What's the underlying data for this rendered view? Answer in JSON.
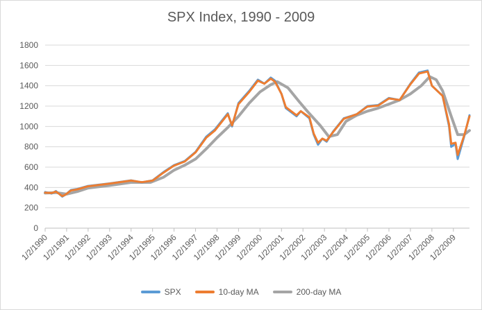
{
  "chart_data": {
    "type": "line",
    "title": "SPX Index, 1990 - 2009",
    "xlabel": "",
    "ylabel": "",
    "ylim": [
      0,
      1800
    ],
    "yticks": [
      "0",
      "200",
      "400",
      "600",
      "800",
      "1000",
      "1200",
      "1400",
      "1600",
      "1800"
    ],
    "xticks": [
      "1/2/1990",
      "1/2/1991",
      "1/2/1992",
      "1/2/1993",
      "1/2/1994",
      "1/2/1995",
      "1/2/1996",
      "1/2/1997",
      "1/2/1998",
      "1/2/1999",
      "1/2/2000",
      "1/2/2001",
      "1/2/2002",
      "1/2/2003",
      "1/2/2004",
      "1/2/2005",
      "1/2/2006",
      "1/2/2007",
      "1/2/2008",
      "1/2/2009"
    ],
    "xlim": [
      1990.0,
      2009.75
    ],
    "grid": true,
    "legend_position": "bottom",
    "series": [
      {
        "name": "SPX",
        "color": "#5b9bd5",
        "x": [
          1990.0,
          1990.3,
          1990.5,
          1990.8,
          1990.95,
          1991.2,
          1991.5,
          1992.0,
          1993.0,
          1994.0,
          1994.5,
          1995.0,
          1995.5,
          1996.0,
          1996.5,
          1997.0,
          1997.5,
          1997.9,
          1998.5,
          1998.7,
          1999.0,
          1999.5,
          1999.9,
          2000.2,
          2000.5,
          2000.7,
          2001.0,
          2001.2,
          2001.7,
          2001.9,
          2002.3,
          2002.5,
          2002.7,
          2002.9,
          2003.1,
          2003.4,
          2003.9,
          2004.5,
          2005.0,
          2005.5,
          2006.0,
          2006.5,
          2007.0,
          2007.4,
          2007.8,
          2008.0,
          2008.5,
          2008.8,
          2008.9,
          2009.1,
          2009.2,
          2009.5,
          2009.75
        ],
        "y": [
          355,
          340,
          365,
          310,
          330,
          375,
          385,
          415,
          440,
          470,
          450,
          470,
          550,
          620,
          660,
          750,
          900,
          970,
          1130,
          1000,
          1230,
          1350,
          1460,
          1420,
          1480,
          1450,
          1320,
          1180,
          1100,
          1150,
          1080,
          920,
          820,
          880,
          850,
          950,
          1080,
          1120,
          1200,
          1210,
          1280,
          1260,
          1420,
          1530,
          1550,
          1400,
          1300,
          1000,
          800,
          830,
          680,
          900,
          1110
        ]
      },
      {
        "name": "10-day MA",
        "color": "#ed7d31",
        "x": [
          1990.0,
          1990.3,
          1990.5,
          1990.8,
          1990.95,
          1991.2,
          1991.5,
          1992.0,
          1993.0,
          1994.0,
          1994.5,
          1995.0,
          1995.5,
          1996.0,
          1996.5,
          1997.0,
          1997.5,
          1997.9,
          1998.5,
          1998.7,
          1999.0,
          1999.5,
          1999.9,
          2000.2,
          2000.5,
          2000.7,
          2001.0,
          2001.2,
          2001.7,
          2001.9,
          2002.3,
          2002.5,
          2002.7,
          2002.9,
          2003.1,
          2003.4,
          2003.9,
          2004.5,
          2005.0,
          2005.5,
          2006.0,
          2006.5,
          2007.0,
          2007.4,
          2007.8,
          2008.0,
          2008.5,
          2008.8,
          2008.9,
          2009.1,
          2009.2,
          2009.5,
          2009.75
        ],
        "y": [
          350,
          345,
          360,
          315,
          330,
          370,
          382,
          412,
          438,
          468,
          452,
          468,
          545,
          615,
          655,
          745,
          890,
          960,
          1120,
          1010,
          1220,
          1340,
          1450,
          1420,
          1470,
          1440,
          1320,
          1190,
          1110,
          1150,
          1090,
          930,
          840,
          880,
          860,
          945,
          1075,
          1120,
          1195,
          1205,
          1275,
          1260,
          1415,
          1520,
          1540,
          1400,
          1300,
          1020,
          830,
          840,
          720,
          910,
          1100
        ]
      },
      {
        "name": "200-day MA",
        "color": "#a5a5a5",
        "x": [
          1990.0,
          1990.5,
          1991.0,
          1991.5,
          1992.0,
          1993.0,
          1994.0,
          1994.9,
          1995.5,
          1996.0,
          1996.5,
          1997.0,
          1997.5,
          1998.0,
          1998.5,
          1999.0,
          1999.5,
          2000.0,
          2000.5,
          2000.8,
          2001.3,
          2001.8,
          2002.2,
          2002.8,
          2003.2,
          2003.6,
          2004.0,
          2004.5,
          2005.0,
          2005.5,
          2006.0,
          2006.5,
          2007.0,
          2007.5,
          2007.9,
          2008.2,
          2008.5,
          2008.9,
          2009.2,
          2009.5,
          2009.75
        ],
        "y": [
          345,
          350,
          335,
          360,
          395,
          420,
          450,
          450,
          500,
          570,
          620,
          680,
          780,
          890,
          990,
          1100,
          1230,
          1340,
          1410,
          1440,
          1380,
          1250,
          1150,
          1010,
          900,
          920,
          1050,
          1110,
          1150,
          1180,
          1220,
          1260,
          1320,
          1400,
          1490,
          1460,
          1350,
          1100,
          920,
          920,
          960
        ]
      }
    ]
  }
}
